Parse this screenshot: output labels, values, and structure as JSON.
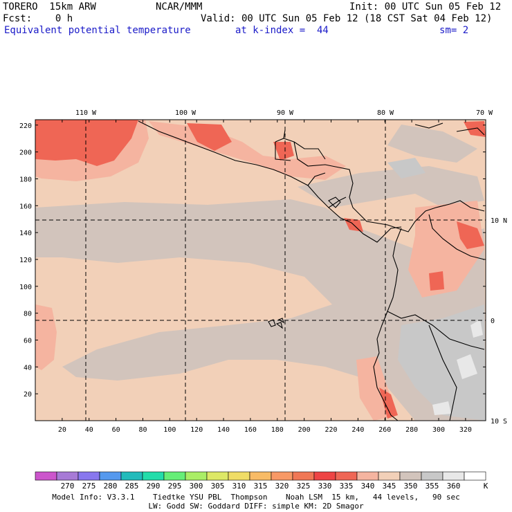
{
  "header": {
    "model": "TORERO  15km ARW",
    "center": "NCAR/MMM",
    "init": "Init: 00 UTC Sun 05 Feb 12",
    "fcst": "Fcst:    0 h",
    "valid": "Valid: 00 UTC Sun 05 Feb 12 (18 CST Sat 04 Feb 12)",
    "field": "Equivalent potential temperature",
    "level": "at k-index =  44",
    "smooth": "sm= 2"
  },
  "map": {
    "lon_labels": [
      "110 W",
      "100 W",
      "90 W",
      "80 W",
      "70 W"
    ],
    "lat_labels": [
      "10 N",
      "0",
      "10 S"
    ],
    "x_ticks": [
      "20",
      "40",
      "60",
      "80",
      "100",
      "120",
      "140",
      "160",
      "180",
      "200",
      "220",
      "240",
      "260",
      "280",
      "300",
      "320"
    ],
    "y_ticks": [
      "220",
      "200",
      "180",
      "160",
      "140",
      "120",
      "100",
      "80",
      "60",
      "40",
      "20"
    ]
  },
  "colorbar": {
    "labels": [
      "270",
      "275",
      "280",
      "285",
      "290",
      "295",
      "300",
      "305",
      "310",
      "315",
      "320",
      "325",
      "330",
      "335",
      "340",
      "345",
      "350",
      "355",
      "360"
    ],
    "unit": "K",
    "colors": [
      "#cc55cc",
      "#a77ad6",
      "#8877ee",
      "#5599ee",
      "#22bbbb",
      "#22ddaa",
      "#66ee77",
      "#aaee66",
      "#dde866",
      "#f0dd66",
      "#f8bb66",
      "#f89966",
      "#f07755",
      "#ee4444",
      "#ef6655",
      "#f5b4a0",
      "#f2d0b8",
      "#d2c4bc",
      "#c8c8c8",
      "#e8e8e8",
      "#ffffff"
    ]
  },
  "footer": {
    "line1": "Model Info: V3.3.1    Tiedtke YSU PBL  Thompson    Noah LSM  15 km,   44 levels,   90 sec",
    "line2": "LW: Godd SW: Goddard DIFF: simple KM: 2D Smagor"
  }
}
